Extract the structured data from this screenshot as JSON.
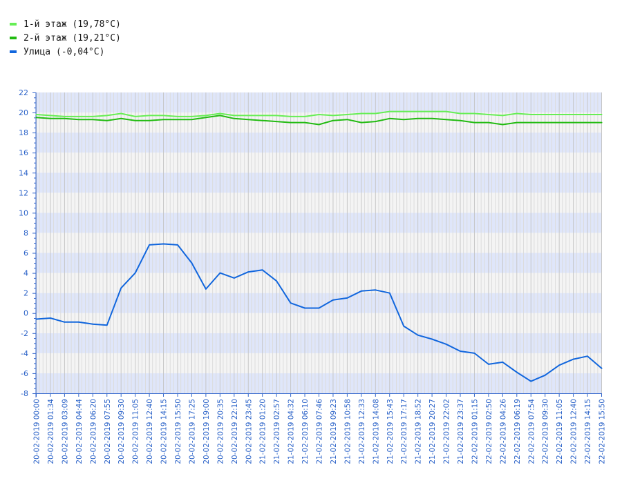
{
  "legend": [
    {
      "label": "1-й этаж (19,78°C)",
      "color": "#66ee55"
    },
    {
      "label": "2-й этаж (19,21°C)",
      "color": "#22bb11"
    },
    {
      "label": "Улица (-0,04°C)",
      "color": "#1166dd"
    }
  ],
  "chart_data": {
    "type": "line",
    "ylim": [
      -8,
      22
    ],
    "yticks": [
      22,
      20,
      18,
      16,
      14,
      12,
      10,
      8,
      6,
      4,
      2,
      0,
      -2,
      -4,
      -6,
      -8
    ],
    "grid": true,
    "legend_position": "top-left",
    "x": [
      "20-02-2019 00:00",
      "20-02-2019 01:34",
      "20-02-2019 03:09",
      "20-02-2019 04:44",
      "20-02-2019 06:20",
      "20-02-2019 07:55",
      "20-02-2019 09:30",
      "20-02-2019 11:05",
      "20-02-2019 12:40",
      "20-02-2019 14:15",
      "20-02-2019 15:50",
      "20-02-2019 17:25",
      "20-02-2019 19:00",
      "20-02-2019 20:35",
      "20-02-2019 22:10",
      "20-02-2019 23:45",
      "21-02-2019 01:20",
      "21-02-2019 02:57",
      "21-02-2019 04:32",
      "21-02-2019 06:10",
      "21-02-2019 07:46",
      "21-02-2019 09:23",
      "21-02-2019 10:58",
      "21-02-2019 12:33",
      "21-02-2019 14:08",
      "21-02-2019 15:43",
      "21-02-2019 17:17",
      "21-02-2019 18:52",
      "21-02-2019 20:27",
      "21-02-2019 22:02",
      "21-02-2019 23:37",
      "22-02-2019 01:15",
      "22-02-2019 02:50",
      "22-02-2019 04:26",
      "22-02-2019 06:19",
      "22-02-2019 07:54",
      "22-02-2019 09:30",
      "22-02-2019 11:05",
      "22-02-2019 12:40",
      "22-02-2019 14:15",
      "22-02-2019 15:50"
    ],
    "series": [
      {
        "name": "1-й этаж (19,78°C)",
        "color": "#66ee55",
        "values": [
          19.8,
          19.7,
          19.6,
          19.6,
          19.6,
          19.7,
          19.9,
          19.6,
          19.7,
          19.7,
          19.6,
          19.6,
          19.7,
          19.9,
          19.7,
          19.7,
          19.7,
          19.7,
          19.6,
          19.6,
          19.8,
          19.7,
          19.8,
          19.9,
          19.9,
          20.1,
          20.1,
          20.1,
          20.1,
          20.1,
          19.9,
          19.9,
          19.8,
          19.7,
          19.9,
          19.8,
          19.8,
          19.8,
          19.8,
          19.8,
          19.8
        ]
      },
      {
        "name": "2-й этаж (19,21°C)",
        "color": "#22bb11",
        "values": [
          19.5,
          19.4,
          19.4,
          19.3,
          19.3,
          19.2,
          19.4,
          19.2,
          19.2,
          19.3,
          19.3,
          19.3,
          19.5,
          19.7,
          19.4,
          19.3,
          19.2,
          19.1,
          19.0,
          19.0,
          18.8,
          19.2,
          19.3,
          19.0,
          19.1,
          19.4,
          19.3,
          19.4,
          19.4,
          19.3,
          19.2,
          19.0,
          19.0,
          18.8,
          19.0,
          19.0,
          19.0,
          19.0,
          19.0,
          19.0,
          19.0
        ]
      },
      {
        "name": "Улица (-0,04°C)",
        "color": "#1166dd",
        "values": [
          -0.6,
          -0.5,
          -0.9,
          -0.9,
          -1.1,
          -1.2,
          2.5,
          4.0,
          6.8,
          6.9,
          6.8,
          5.0,
          2.4,
          4.0,
          3.5,
          4.1,
          4.3,
          3.2,
          1.0,
          0.5,
          0.5,
          1.3,
          1.5,
          2.2,
          2.3,
          2.0,
          -1.3,
          -2.2,
          -2.6,
          -3.1,
          -3.8,
          -4.0,
          -5.1,
          -4.9,
          -5.9,
          -6.8,
          -6.2,
          -5.2,
          -4.6,
          -4.3,
          -5.5
        ]
      }
    ]
  }
}
